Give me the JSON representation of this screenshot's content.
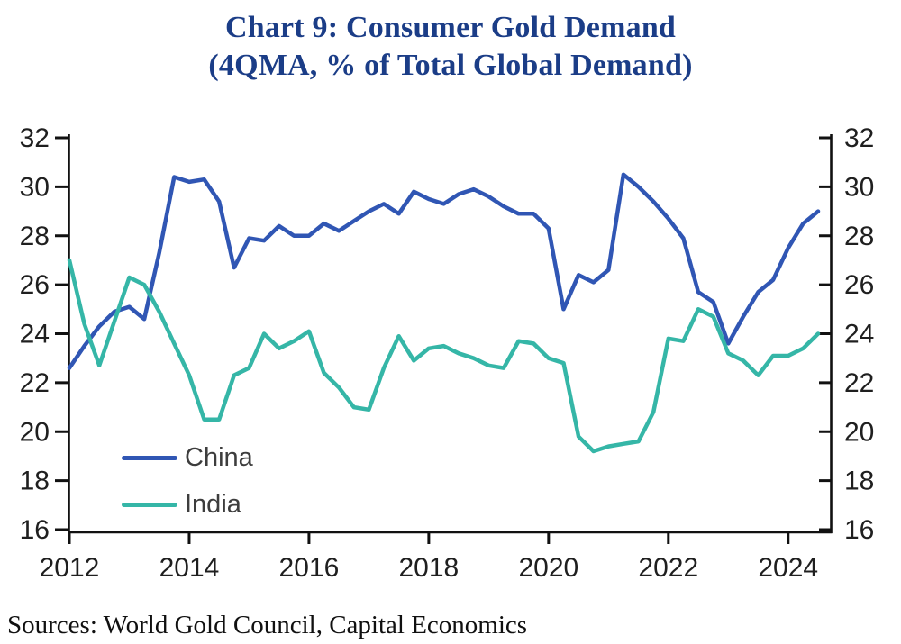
{
  "chart_data": {
    "type": "line",
    "title_line1": "Chart 9: Consumer Gold Demand",
    "title_line2": "(4QMA, % of Total Global Demand)",
    "title_color": "#1b3d87",
    "axis_color": "#111111",
    "grid": false,
    "legend_position": "inside-bottom-left",
    "ylim": [
      16,
      32
    ],
    "y_ticks": [
      32,
      30,
      28,
      26,
      24,
      22,
      20,
      18,
      16
    ],
    "y_axis_sides": "both",
    "x_tick_labels": [
      "2012",
      "2014",
      "2016",
      "2018",
      "2020",
      "2022",
      "2024"
    ],
    "x_frequency": "quarterly",
    "x_range": "2012Q1 - 2024Q3",
    "series": [
      {
        "name": "China",
        "color": "#3056b4",
        "values": [
          22.6,
          23.5,
          24.3,
          24.9,
          25.1,
          24.6,
          27.3,
          30.4,
          30.2,
          30.3,
          29.4,
          26.7,
          27.9,
          27.8,
          28.4,
          28.0,
          28.0,
          28.5,
          28.2,
          28.6,
          29.0,
          29.3,
          28.9,
          29.8,
          29.5,
          29.3,
          29.7,
          29.9,
          29.6,
          29.2,
          28.9,
          28.9,
          28.3,
          25.0,
          26.4,
          26.1,
          26.6,
          30.5,
          30.0,
          29.4,
          28.7,
          27.9,
          25.7,
          25.3,
          23.6,
          24.7,
          25.7,
          26.2,
          27.5,
          28.5,
          29.0
        ]
      },
      {
        "name": "India",
        "color": "#35b6a7",
        "values": [
          27.0,
          24.4,
          22.7,
          24.5,
          26.3,
          26.0,
          24.9,
          23.6,
          22.3,
          20.5,
          20.5,
          22.3,
          22.6,
          24.0,
          23.4,
          23.7,
          24.1,
          22.4,
          21.8,
          21.0,
          20.9,
          22.6,
          23.9,
          22.9,
          23.4,
          23.5,
          23.2,
          23.0,
          22.7,
          22.6,
          23.7,
          23.6,
          23.0,
          22.8,
          19.8,
          19.2,
          19.4,
          19.5,
          19.6,
          20.8,
          23.8,
          23.7,
          25.0,
          24.7,
          23.2,
          22.9,
          22.3,
          23.1,
          23.1,
          23.4,
          24.0
        ]
      }
    ],
    "source": "Sources: World Gold Council, Capital Economics"
  }
}
